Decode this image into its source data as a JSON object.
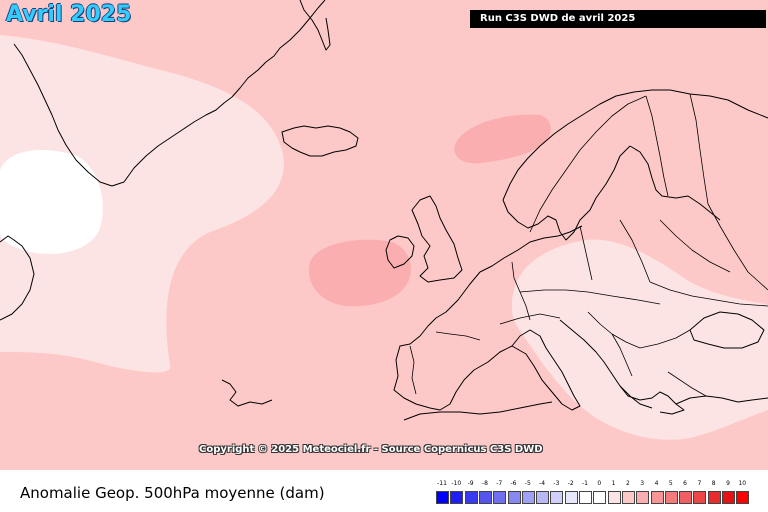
{
  "header": {
    "month_title": "Avril 2025",
    "run_banner": "Run C3S DWD de avril 2025"
  },
  "map": {
    "copyright": "Copyright © 2025 Meteociel.fr - Source Copernicus C3S DWD",
    "colors": {
      "sea_base": "#fdc8c8",
      "weak_anomaly": "#fde4e4",
      "zero_anomaly": "#ffffff",
      "positive_core": "#faaeb0",
      "coastline": "#000000"
    },
    "regions": [
      {
        "name": "white-core-labrador",
        "anomaly_band": "-1 to 1"
      },
      {
        "name": "weak-zone-atlantic-west",
        "anomaly_band": "1 to 2"
      },
      {
        "name": "weak-zone-central-southeast-europe",
        "anomaly_band": "1 to 2"
      },
      {
        "name": "core-west-of-ireland",
        "anomaly_band": "3 to 4"
      },
      {
        "name": "core-norwegian-sea",
        "anomaly_band": "3 to 4"
      }
    ]
  },
  "footer": {
    "variable_label": "Anomalie Geop. 500hPa moyenne (dam)"
  },
  "legend": {
    "ticks": [
      "-11",
      "-10",
      "-9",
      "-8",
      "-7",
      "-6",
      "-5",
      "-4",
      "-3",
      "-2",
      "-1",
      "0",
      "1",
      "2",
      "3",
      "4",
      "5",
      "6",
      "7",
      "8",
      "9",
      "10"
    ],
    "swatch_colors": [
      "#0000ff",
      "#1f1ff5",
      "#3a3af0",
      "#5555ee",
      "#6f6ff0",
      "#8888f2",
      "#a0a0f4",
      "#b8b8f7",
      "#cfcff9",
      "#e6e6fc",
      "#ffffff",
      "#ffffff",
      "#fde4e4",
      "#fdc8c8",
      "#faaeb0",
      "#f79496",
      "#f47a7c",
      "#f06062",
      "#ec4648",
      "#e82c2e",
      "#e41214",
      "#ff0000"
    ]
  }
}
